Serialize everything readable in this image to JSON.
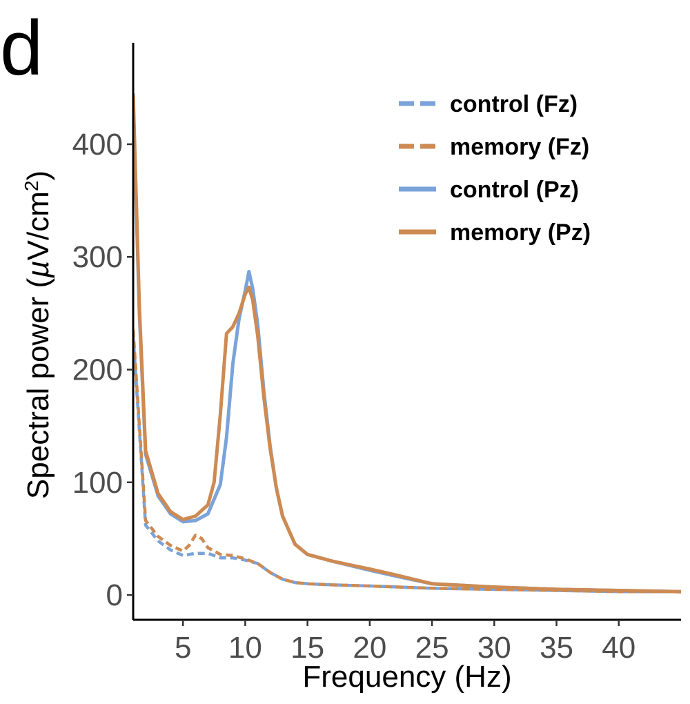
{
  "panel_label": "d",
  "chart_data": {
    "type": "line",
    "xlabel": "Frequency (Hz)",
    "ylabel_prefix": "Spectral power (",
    "ylabel_mu": "µ",
    "ylabel_unit": "V/cm",
    "ylabel_sup": "2",
    "ylabel_suffix": ")",
    "xlim": [
      1,
      45
    ],
    "ylim": [
      -22,
      490
    ],
    "xticks": [
      5,
      10,
      15,
      20,
      25,
      30,
      35,
      40
    ],
    "xtick_labels": [
      "5",
      "10",
      "15",
      "20",
      "25",
      "30",
      "35",
      "40"
    ],
    "yticks": [
      0,
      100,
      200,
      300,
      400
    ],
    "ytick_labels": [
      "0",
      "100",
      "200",
      "300",
      "400"
    ],
    "grid": false,
    "legend_position": "top-right",
    "series": [
      {
        "name": "control (Fz)",
        "color": "#7ba3d9",
        "dash": "dashed",
        "x": [
          1,
          2,
          3,
          4,
          5,
          6,
          7,
          8,
          9,
          10,
          11,
          12,
          13,
          14,
          15,
          17,
          20,
          25,
          30,
          35,
          40,
          45
        ],
        "y": [
          230,
          62,
          48,
          40,
          35,
          37,
          37,
          33,
          33,
          31,
          28,
          20,
          14,
          11,
          10,
          9,
          8,
          6,
          5,
          4,
          3,
          3
        ]
      },
      {
        "name": "memory (Fz)",
        "color": "#cd8a52",
        "dash": "dashed",
        "x": [
          1,
          2,
          3,
          4,
          5,
          5.5,
          6,
          6.5,
          7,
          8,
          9,
          10,
          11,
          12,
          13,
          14,
          15,
          17,
          20,
          25,
          30,
          35,
          40,
          45
        ],
        "y": [
          235,
          66,
          52,
          44,
          39,
          44,
          53,
          50,
          42,
          36,
          35,
          32,
          28,
          20,
          14,
          11,
          10,
          9,
          8,
          6,
          5,
          4,
          3,
          3
        ]
      },
      {
        "name": "control (Pz)",
        "color": "#7ba3d9",
        "dash": "solid",
        "x": [
          1,
          1.5,
          2,
          3,
          4,
          5,
          6,
          7,
          8,
          8.5,
          9,
          9.5,
          10,
          10.3,
          10.6,
          11,
          11.5,
          12,
          12.5,
          13,
          14,
          15,
          17,
          20,
          22,
          25,
          30,
          35,
          40,
          45
        ],
        "y": [
          440,
          250,
          125,
          88,
          72,
          65,
          66,
          72,
          98,
          140,
          205,
          245,
          270,
          287,
          272,
          240,
          180,
          132,
          95,
          70,
          45,
          36,
          30,
          22,
          17,
          10,
          7,
          5,
          4,
          3
        ]
      },
      {
        "name": "memory (Pz)",
        "color": "#cd8a52",
        "dash": "solid",
        "x": [
          1,
          1.5,
          2,
          3,
          4,
          5,
          6,
          7,
          7.5,
          8,
          8.5,
          9,
          9.5,
          10,
          10.3,
          10.6,
          11,
          11.5,
          12,
          12.5,
          13,
          14,
          15,
          17,
          20,
          22,
          25,
          30,
          35,
          40,
          45
        ],
        "y": [
          445,
          255,
          128,
          90,
          74,
          67,
          70,
          80,
          100,
          160,
          232,
          238,
          250,
          267,
          273,
          262,
          230,
          175,
          130,
          95,
          70,
          45,
          36,
          30,
          23,
          18,
          10,
          7,
          5,
          4,
          3
        ]
      }
    ]
  }
}
